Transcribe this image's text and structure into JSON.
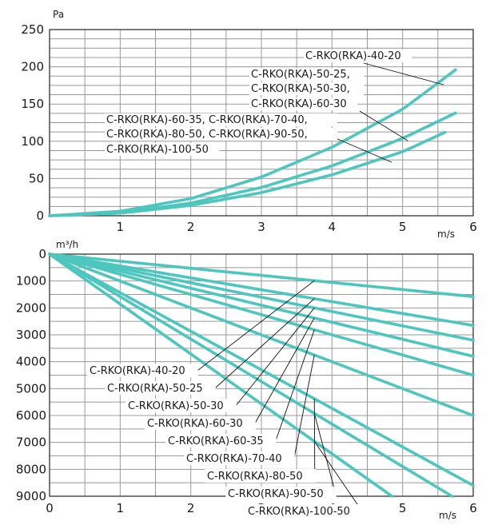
{
  "colors": {
    "curve": "#4cc6bf",
    "grid": "#999999",
    "text": "#1a1a1a"
  },
  "chart_data": [
    {
      "type": "line",
      "title": "",
      "xlabel": "m/s",
      "ylabel": "Pa",
      "xlim": [
        0,
        6
      ],
      "ylim": [
        0,
        250
      ],
      "x_ticks": [
        "1",
        "2",
        "3",
        "4",
        "5",
        "6"
      ],
      "y_ticks": [
        "0",
        "50",
        "100",
        "150",
        "200",
        "250"
      ],
      "grid": true,
      "series": [
        {
          "label_lines": [
            "C-RKO(RKA)-40-20"
          ],
          "points": [
            [
              0,
              0
            ],
            [
              1,
              6
            ],
            [
              2,
              23
            ],
            [
              3,
              52
            ],
            [
              4,
              92
            ],
            [
              5,
              143
            ],
            [
              5.75,
              196
            ]
          ]
        },
        {
          "label_lines": [
            "C-RKO(RKA)-50-25,",
            "C-RKO(RKA)-50-30,",
            "C-RKO(RKA)-60-30"
          ],
          "points": [
            [
              0,
              0
            ],
            [
              1,
              4
            ],
            [
              2,
              17
            ],
            [
              3,
              38
            ],
            [
              4,
              67
            ],
            [
              5,
              104
            ],
            [
              5.75,
              138
            ]
          ]
        },
        {
          "label_lines": [
            "C-RKO(RKA)-60-35, C-RKO(RKA)-70-40,",
            "C-RKO(RKA)-80-50, C-RKO(RKA)-90-50,",
            "C-RKO(RKA)-100-50"
          ],
          "points": [
            [
              0,
              0
            ],
            [
              1,
              3.5
            ],
            [
              2,
              14
            ],
            [
              3,
              31
            ],
            [
              4,
              55
            ],
            [
              5,
              86
            ],
            [
              5.6,
              112
            ]
          ]
        }
      ]
    },
    {
      "type": "line",
      "title": "",
      "xlabel": "m/s",
      "ylabel": "m³/h",
      "xlim": [
        0,
        6
      ],
      "ylim": [
        9000,
        0
      ],
      "x_ticks": [
        "0",
        "1",
        "2",
        "3",
        "4",
        "5",
        "6"
      ],
      "y_ticks": [
        "0",
        "1000",
        "2000",
        "3000",
        "4000",
        "5000",
        "6000",
        "7000",
        "8000",
        "9000"
      ],
      "grid": true,
      "series": [
        {
          "name": "C-RKO(RKA)-40-20",
          "points": [
            [
              0,
              0
            ],
            [
              6,
              1580
            ]
          ]
        },
        {
          "name": "C-RKO(RKA)-50-25",
          "points": [
            [
              0,
              0
            ],
            [
              6,
              2650
            ]
          ]
        },
        {
          "name": "C-RKO(RKA)-50-30",
          "points": [
            [
              0,
              0
            ],
            [
              6,
              3200
            ]
          ]
        },
        {
          "name": "C-RKO(RKA)-60-30",
          "points": [
            [
              0,
              0
            ],
            [
              6,
              3800
            ]
          ]
        },
        {
          "name": "C-RKO(RKA)-60-35",
          "points": [
            [
              0,
              0
            ],
            [
              6,
              4500
            ]
          ]
        },
        {
          "name": "C-RKO(RKA)-70-40",
          "points": [
            [
              0,
              0
            ],
            [
              6,
              6000
            ]
          ]
        },
        {
          "name": "C-RKO(RKA)-80-50",
          "points": [
            [
              0,
              0
            ],
            [
              6,
              8600
            ]
          ]
        },
        {
          "name": "C-RKO(RKA)-90-50",
          "points": [
            [
              0,
              0
            ],
            [
              5.7,
              9000
            ]
          ]
        },
        {
          "name": "C-RKO(RKA)-100-50",
          "points": [
            [
              0,
              0
            ],
            [
              4.85,
              9000
            ]
          ]
        }
      ]
    }
  ]
}
